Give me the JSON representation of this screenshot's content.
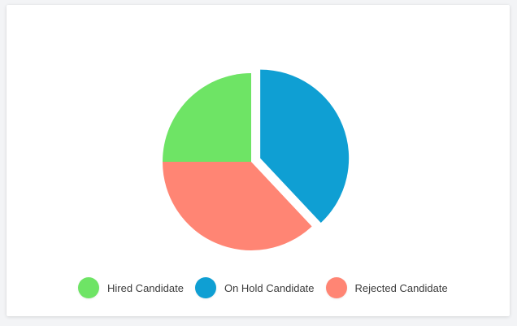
{
  "chart_data": {
    "type": "pie",
    "title": "",
    "legend_position": "bottom",
    "slices": [
      {
        "label": "Hired Candidate",
        "value": 25,
        "color": "#6ee465",
        "exploded": false
      },
      {
        "label": "On Hold Candidate",
        "value": 38,
        "color": "#0f9fd3",
        "exploded": true
      },
      {
        "label": "Rejected Candidate",
        "value": 37,
        "color": "#ff8574",
        "exploded": false
      }
    ]
  }
}
